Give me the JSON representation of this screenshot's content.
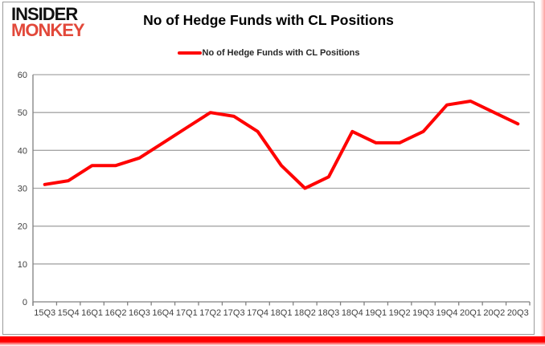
{
  "logo": {
    "line1": "INSIDER",
    "line2": "MONKEY"
  },
  "header": {
    "title": "No of Hedge Funds with CL Positions"
  },
  "legend": {
    "label": "No of Hedge Funds with CL Positions"
  },
  "colors": {
    "series_line": "#ff0000",
    "gridline": "#a6a6a6",
    "axis": "#808080",
    "tick_label": "#404040",
    "logo_black": "#111111",
    "logo_red": "#e2483a",
    "bottom_bar_red": "#ff0000"
  },
  "chart_data": {
    "type": "line",
    "title": "No of Hedge Funds with CL Positions",
    "categories": [
      "15Q3",
      "15Q4",
      "16Q1",
      "16Q2",
      "16Q3",
      "16Q4",
      "17Q1",
      "17Q2",
      "17Q3",
      "17Q4",
      "18Q1",
      "18Q2",
      "18Q3",
      "18Q4",
      "19Q1",
      "19Q2",
      "19Q3",
      "19Q4",
      "20Q1",
      "20Q2",
      "20Q3"
    ],
    "series": [
      {
        "name": "No of Hedge Funds with CL Positions",
        "color": "#ff0000",
        "values": [
          31,
          32,
          36,
          36,
          38,
          42,
          46,
          50,
          49,
          45,
          36,
          30,
          33,
          45,
          42,
          42,
          45,
          52,
          53,
          50,
          47
        ]
      }
    ],
    "xlabel": "",
    "ylabel": "",
    "ylim": [
      0,
      60
    ],
    "yticks": [
      0,
      10,
      20,
      30,
      40,
      50,
      60
    ],
    "grid": true,
    "legend_position": "top-center"
  }
}
